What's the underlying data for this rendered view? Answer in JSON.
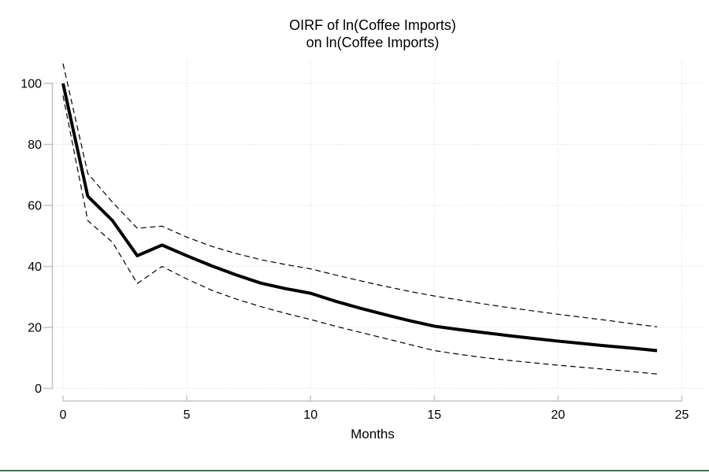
{
  "title": {
    "line1": "OIRF of ln(Coffee Imports)",
    "line2": "on ln(Coffee Imports)"
  },
  "colors": {
    "axis": "#c3c3c3",
    "grid": "#d2d2d2",
    "series": "#000000",
    "bottom_rule": "#44704f",
    "background": "#ffffff",
    "text": "#000000"
  },
  "chart_data": {
    "type": "line",
    "title": "OIRF of ln(Coffee Imports) on ln(Coffee Imports)",
    "xlabel": "Months",
    "ylabel": "",
    "xlim": [
      0,
      25
    ],
    "ylim": [
      0,
      100
    ],
    "grid": true,
    "legend": "none",
    "xticks": [
      0,
      5,
      10,
      15,
      20,
      25
    ],
    "xtick_labels": [
      "0",
      "5",
      "10",
      "15",
      "20",
      "25"
    ],
    "yticks": [
      0,
      20,
      40,
      60,
      80,
      100
    ],
    "ytick_labels": [
      "0",
      "20",
      "40",
      "60",
      "80",
      "100"
    ],
    "x": [
      0,
      1,
      2,
      3,
      4,
      5,
      6,
      7,
      8,
      9,
      10,
      11,
      12,
      13,
      14,
      15,
      16,
      17,
      18,
      19,
      20,
      21,
      22,
      23,
      24
    ],
    "series": [
      {
        "name": "oirf",
        "style": "solid",
        "width": 4,
        "values": [
          100,
          63,
          55,
          43.5,
          47,
          43.5,
          40.2,
          37.2,
          34.5,
          32.7,
          31.2,
          28.6,
          26.3,
          24.2,
          22.2,
          20.4,
          19.3,
          18.3,
          17.3,
          16.4,
          15.5,
          14.7,
          13.9,
          13.2,
          12.4
        ]
      },
      {
        "name": "ci-upper",
        "style": "dashed",
        "width": 1.2,
        "values": [
          106.5,
          70.5,
          61,
          52.5,
          53.2,
          49.6,
          46.6,
          44.2,
          42.2,
          40.6,
          39.2,
          37.2,
          35.3,
          33.5,
          31.8,
          30.3,
          29,
          27.7,
          26.5,
          25.4,
          24.3,
          23.3,
          22.3,
          21.2,
          20.2
        ]
      },
      {
        "name": "ci-lower",
        "style": "dashed",
        "width": 1.2,
        "values": [
          96,
          55,
          47.9,
          34.4,
          40,
          35.9,
          32.2,
          29.3,
          26.8,
          24.6,
          22.6,
          20.4,
          18.4,
          16.4,
          14.4,
          12.4,
          11.2,
          10.1,
          9.2,
          8.4,
          7.6,
          6.9,
          6.2,
          5.5,
          4.7
        ]
      }
    ]
  }
}
